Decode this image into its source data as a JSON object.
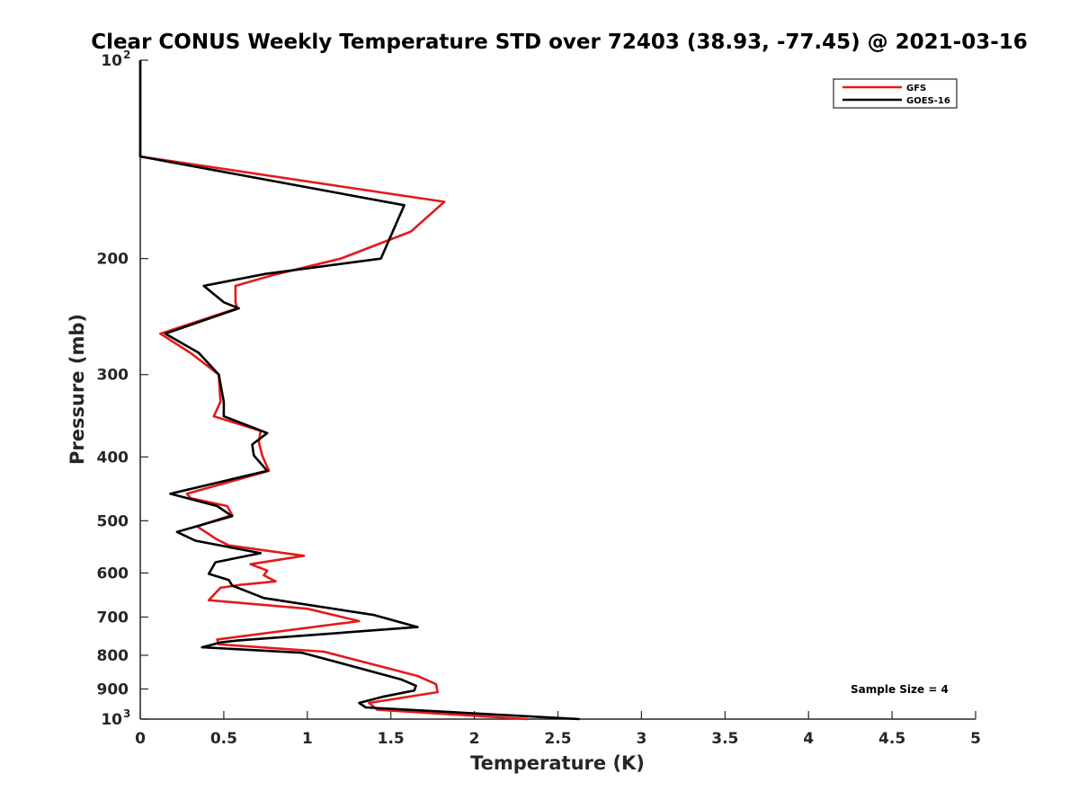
{
  "chart_data": {
    "type": "line",
    "title": "Clear CONUS Weekly Temperature STD over 72403 (38.93, -77.45) @ 2021-03-16",
    "xlabel": "Temperature (K)",
    "ylabel": "Pressure (mb)",
    "xlim": [
      0,
      5
    ],
    "ylim": [
      100,
      1000
    ],
    "y_scale": "log",
    "y_reversed": true,
    "grid": false,
    "legend_position": "top-right",
    "x_ticks": [
      {
        "value": 0,
        "label": "0"
      },
      {
        "value": 0.5,
        "label": "0.5"
      },
      {
        "value": 1,
        "label": "1"
      },
      {
        "value": 1.5,
        "label": "1.5"
      },
      {
        "value": 2,
        "label": "2"
      },
      {
        "value": 2.5,
        "label": "2.5"
      },
      {
        "value": 3,
        "label": "3"
      },
      {
        "value": 3.5,
        "label": "3.5"
      },
      {
        "value": 4,
        "label": "4"
      },
      {
        "value": 4.5,
        "label": "4.5"
      },
      {
        "value": 5,
        "label": "5"
      }
    ],
    "y_ticks": [
      {
        "value": 100,
        "label": "10",
        "sup": "2"
      },
      {
        "value": 200,
        "label": "200",
        "sup": ""
      },
      {
        "value": 300,
        "label": "300",
        "sup": ""
      },
      {
        "value": 400,
        "label": "400",
        "sup": ""
      },
      {
        "value": 500,
        "label": "500",
        "sup": ""
      },
      {
        "value": 600,
        "label": "600",
        "sup": ""
      },
      {
        "value": 700,
        "label": "700",
        "sup": ""
      },
      {
        "value": 800,
        "label": "800",
        "sup": ""
      },
      {
        "value": 900,
        "label": "900",
        "sup": ""
      },
      {
        "value": 1000,
        "label": "10",
        "sup": "3"
      }
    ],
    "series": [
      {
        "name": "GFS",
        "color": "#e31a1c",
        "points": [
          [
            0,
            100
          ],
          [
            0,
            140
          ],
          [
            1.82,
            164
          ],
          [
            1.62,
            182
          ],
          [
            1.2,
            200
          ],
          [
            0.79,
            212
          ],
          [
            0.57,
            220
          ],
          [
            0.57,
            233
          ],
          [
            0.58,
            238
          ],
          [
            0.12,
            260
          ],
          [
            0.3,
            278
          ],
          [
            0.47,
            300
          ],
          [
            0.48,
            330
          ],
          [
            0.44,
            347
          ],
          [
            0.72,
            365
          ],
          [
            0.71,
            380
          ],
          [
            0.73,
            398
          ],
          [
            0.77,
            420
          ],
          [
            0.28,
            455
          ],
          [
            0.3,
            462
          ],
          [
            0.52,
            475
          ],
          [
            0.55,
            490
          ],
          [
            0.34,
            510
          ],
          [
            0.45,
            532
          ],
          [
            0.53,
            545
          ],
          [
            0.98,
            565
          ],
          [
            0.66,
            582
          ],
          [
            0.76,
            595
          ],
          [
            0.74,
            605
          ],
          [
            0.81,
            618
          ],
          [
            0.61,
            625
          ],
          [
            0.48,
            632
          ],
          [
            0.41,
            660
          ],
          [
            1.0,
            680
          ],
          [
            1.31,
            710
          ],
          [
            0.46,
            757
          ],
          [
            0.47,
            770
          ],
          [
            1.1,
            790
          ],
          [
            1.66,
            860
          ],
          [
            1.77,
            885
          ],
          [
            1.78,
            910
          ],
          [
            1.37,
            945
          ],
          [
            1.42,
            968
          ],
          [
            2.32,
            1000
          ]
        ]
      },
      {
        "name": "GOES-16",
        "color": "#000000",
        "points": [
          [
            0,
            100
          ],
          [
            0,
            140
          ],
          [
            1.58,
            166
          ],
          [
            1.44,
            200
          ],
          [
            0.75,
            211
          ],
          [
            0.38,
            220
          ],
          [
            0.5,
            233
          ],
          [
            0.59,
            238
          ],
          [
            0.15,
            260
          ],
          [
            0.35,
            278
          ],
          [
            0.47,
            300
          ],
          [
            0.5,
            330
          ],
          [
            0.5,
            347
          ],
          [
            0.76,
            368
          ],
          [
            0.67,
            383
          ],
          [
            0.68,
            398
          ],
          [
            0.76,
            420
          ],
          [
            0.18,
            455
          ],
          [
            0.46,
            475
          ],
          [
            0.55,
            492
          ],
          [
            0.22,
            520
          ],
          [
            0.33,
            536
          ],
          [
            0.72,
            560
          ],
          [
            0.45,
            578
          ],
          [
            0.41,
            602
          ],
          [
            0.53,
            615
          ],
          [
            0.55,
            627
          ],
          [
            0.74,
            655
          ],
          [
            1.4,
            695
          ],
          [
            1.66,
            725
          ],
          [
            0.58,
            760
          ],
          [
            0.48,
            765
          ],
          [
            0.37,
            778
          ],
          [
            0.97,
            793
          ],
          [
            1.56,
            870
          ],
          [
            1.65,
            890
          ],
          [
            1.64,
            905
          ],
          [
            1.45,
            925
          ],
          [
            1.31,
            945
          ],
          [
            1.35,
            960
          ],
          [
            2.63,
            1000
          ]
        ]
      }
    ],
    "annotations": [
      "Sample Size = 4"
    ]
  }
}
